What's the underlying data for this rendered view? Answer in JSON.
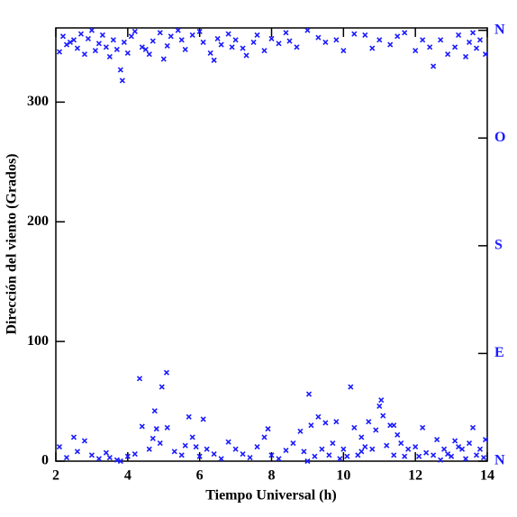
{
  "chart_data": {
    "type": "scatter",
    "xlabel": "Tiempo Universal (h)",
    "ylabel": "Dirección del viento (Grados)",
    "xlim": [
      2,
      14
    ],
    "xticks": [
      2,
      4,
      6,
      8,
      10,
      12,
      14
    ],
    "ylim": [
      0,
      362
    ],
    "yticks": [
      0,
      100,
      200,
      300
    ],
    "y2lim": [
      0,
      362
    ],
    "y2ticks": [
      {
        "value": 0,
        "label": "N"
      },
      {
        "value": 90,
        "label": "E"
      },
      {
        "value": 180,
        "label": "S"
      },
      {
        "value": 270,
        "label": "O"
      },
      {
        "value": 360,
        "label": "N"
      }
    ],
    "y2color": "#1a1aff",
    "series": [
      {
        "color": "#1a1aff",
        "x": [
          2.1,
          2.2,
          2.3,
          2.4,
          2.5,
          2.6,
          2.7,
          2.8,
          2.9,
          3.0,
          3.1,
          3.2,
          3.3,
          3.4,
          3.5,
          3.6,
          3.7,
          3.8,
          3.85,
          3.9,
          4.0,
          4.1,
          4.2,
          4.4,
          4.5,
          4.6,
          4.7,
          4.9,
          5.0,
          5.1,
          5.2,
          5.4,
          5.5,
          5.6,
          5.8,
          6.0,
          6.1,
          6.3,
          6.4,
          6.5,
          6.6,
          6.8,
          6.9,
          7.0,
          7.2,
          7.3,
          7.5,
          7.6,
          7.8,
          8.0,
          8.2,
          8.4,
          8.5,
          8.7,
          9.0,
          9.3,
          9.5,
          9.8,
          10.0,
          10.3,
          10.6,
          10.8,
          11.0,
          11.3,
          11.5,
          11.7,
          12.0,
          12.2,
          12.4,
          12.5,
          12.7,
          12.9,
          13.1,
          13.2,
          13.4,
          13.5,
          13.6,
          13.7,
          13.8,
          13.95,
          2.1,
          2.3,
          2.5,
          2.6,
          2.8,
          3.0,
          3.2,
          3.4,
          3.5,
          3.7,
          3.8,
          4.0,
          4.2,
          4.33,
          4.4,
          4.6,
          4.7,
          4.75,
          4.8,
          4.9,
          4.95,
          5.08,
          5.1,
          5.3,
          5.5,
          5.6,
          5.7,
          5.8,
          5.9,
          6.0,
          6.1,
          6.2,
          6.4,
          6.6,
          6.8,
          7.0,
          7.2,
          7.4,
          7.6,
          7.8,
          7.9,
          8.0,
          8.2,
          8.4,
          8.6,
          8.8,
          8.9,
          9.04,
          9.1,
          9.2,
          9.3,
          9.4,
          9.5,
          9.6,
          9.7,
          9.8,
          9.9,
          10.0,
          10.1,
          10.2,
          10.3,
          10.4,
          10.5,
          10.6,
          10.7,
          10.8,
          10.9,
          11.0,
          11.05,
          11.1,
          11.2,
          11.3,
          11.4,
          11.5,
          11.6,
          11.7,
          11.8,
          12.0,
          12.1,
          12.2,
          12.3,
          12.5,
          12.6,
          12.7,
          12.8,
          13.0,
          13.1,
          13.2,
          13.3,
          13.4,
          13.5,
          13.6,
          13.7,
          13.8,
          13.9,
          13.95,
          9.0,
          10.5,
          11.4,
          12.9
        ],
        "values": [
          342,
          355,
          348,
          350,
          352,
          345,
          357,
          340,
          353,
          360,
          343,
          349,
          356,
          346,
          338,
          352,
          344,
          327,
          318,
          350,
          341,
          355,
          359,
          346,
          344,
          340,
          351,
          358,
          336,
          347,
          355,
          360,
          352,
          344,
          356,
          359,
          350,
          341,
          335,
          353,
          348,
          357,
          346,
          352,
          345,
          339,
          350,
          356,
          343,
          353,
          349,
          358,
          351,
          346,
          360,
          354,
          350,
          352,
          343,
          357,
          356,
          345,
          352,
          348,
          355,
          358,
          343,
          352,
          346,
          330,
          352,
          340,
          346,
          356,
          338,
          350,
          358,
          345,
          352,
          340,
          12,
          3,
          20,
          8,
          17,
          5,
          2,
          7,
          3,
          1,
          0,
          4,
          6,
          69,
          29,
          10,
          19,
          42,
          27,
          15,
          62,
          74,
          28,
          8,
          5,
          13,
          37,
          20,
          12,
          4,
          35,
          10,
          6,
          2,
          16,
          10,
          6,
          3,
          12,
          20,
          27,
          5,
          2,
          9,
          15,
          25,
          8,
          56,
          30,
          4,
          37,
          10,
          32,
          5,
          15,
          33,
          2,
          10,
          4,
          62,
          28,
          5,
          20,
          12,
          33,
          10,
          26,
          46,
          51,
          38,
          13,
          30,
          5,
          22,
          15,
          4,
          10,
          12,
          4,
          28,
          7,
          5,
          18,
          1,
          10,
          4,
          17,
          12,
          10,
          2,
          15,
          28,
          5,
          10,
          3,
          18,
          0,
          8,
          30,
          6
        ]
      }
    ]
  }
}
